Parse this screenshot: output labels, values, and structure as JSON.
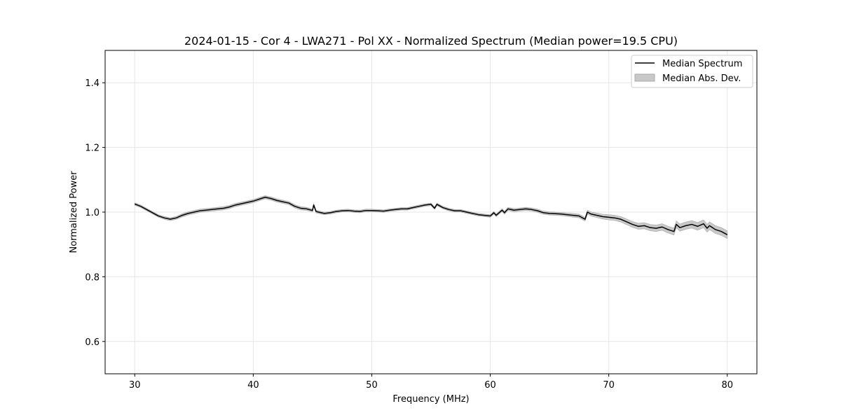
{
  "chart_data": {
    "type": "line",
    "title": "2024-01-15 - Cor 4 - LWA271 - Pol XX - Normalized Spectrum (Median power=19.5 CPU)",
    "xlabel": "Frequency (MHz)",
    "ylabel": "Normalized Power",
    "xlim": [
      27.5,
      82.5
    ],
    "ylim": [
      0.5,
      1.5
    ],
    "xticks": [
      30,
      40,
      50,
      60,
      70,
      80
    ],
    "yticks": [
      0.6,
      0.8,
      1.0,
      1.2,
      1.4
    ],
    "xtick_labels": [
      "30",
      "40",
      "50",
      "60",
      "70",
      "80"
    ],
    "ytick_labels": [
      "0.6",
      "0.8",
      "1.0",
      "1.2",
      "1.4"
    ],
    "grid": true,
    "legend": {
      "placement": "top-right",
      "entries": [
        "Median Spectrum",
        "Median Abs. Dev."
      ]
    },
    "series": [
      {
        "name": "Median Spectrum",
        "color": "#000000",
        "x": [
          30.0,
          30.5,
          31.0,
          31.5,
          32.0,
          32.5,
          33.0,
          33.5,
          34.0,
          34.5,
          35.0,
          35.5,
          36.0,
          36.5,
          37.0,
          37.5,
          38.0,
          38.5,
          39.0,
          39.5,
          40.0,
          40.5,
          41.0,
          41.5,
          42.0,
          42.5,
          43.0,
          43.5,
          44.0,
          44.5,
          45.0,
          45.1,
          45.3,
          45.5,
          46.0,
          46.5,
          47.0,
          47.5,
          48.0,
          48.5,
          49.0,
          49.5,
          50.0,
          50.5,
          51.0,
          51.5,
          52.0,
          52.5,
          53.0,
          53.5,
          54.0,
          54.5,
          55.0,
          55.3,
          55.5,
          56.0,
          56.5,
          57.0,
          57.5,
          58.0,
          58.5,
          59.0,
          59.5,
          60.0,
          60.3,
          60.5,
          61.0,
          61.2,
          61.5,
          62.0,
          62.5,
          63.0,
          63.5,
          64.0,
          64.5,
          65.0,
          65.5,
          66.0,
          66.5,
          67.0,
          67.5,
          68.0,
          68.2,
          68.5,
          69.0,
          69.5,
          70.0,
          70.5,
          71.0,
          71.5,
          72.0,
          72.5,
          73.0,
          73.5,
          74.0,
          74.5,
          75.0,
          75.5,
          75.7,
          76.0,
          76.5,
          77.0,
          77.5,
          78.0,
          78.3,
          78.5,
          79.0,
          79.5,
          80.0
        ],
        "values": [
          1.025,
          1.018,
          1.008,
          0.998,
          0.988,
          0.982,
          0.978,
          0.982,
          0.99,
          0.996,
          1.0,
          1.004,
          1.006,
          1.008,
          1.01,
          1.012,
          1.016,
          1.022,
          1.026,
          1.03,
          1.034,
          1.04,
          1.046,
          1.042,
          1.036,
          1.032,
          1.028,
          1.018,
          1.012,
          1.01,
          1.005,
          1.022,
          1.002,
          1.0,
          0.996,
          0.998,
          1.002,
          1.004,
          1.005,
          1.003,
          1.002,
          1.005,
          1.005,
          1.004,
          1.003,
          1.006,
          1.008,
          1.01,
          1.01,
          1.014,
          1.018,
          1.022,
          1.024,
          1.012,
          1.024,
          1.014,
          1.008,
          1.004,
          1.004,
          1.0,
          0.996,
          0.992,
          0.99,
          0.988,
          0.998,
          0.99,
          1.006,
          0.998,
          1.01,
          1.006,
          1.008,
          1.01,
          1.008,
          1.004,
          0.998,
          0.996,
          0.995,
          0.994,
          0.992,
          0.99,
          0.988,
          0.978,
          1.0,
          0.994,
          0.99,
          0.986,
          0.984,
          0.982,
          0.978,
          0.97,
          0.962,
          0.956,
          0.958,
          0.952,
          0.95,
          0.954,
          0.946,
          0.94,
          0.962,
          0.952,
          0.958,
          0.962,
          0.956,
          0.964,
          0.95,
          0.958,
          0.946,
          0.94,
          0.93
        ]
      },
      {
        "name": "Median Abs. Dev.",
        "color": "#c8c8c8",
        "x": [
          30.0,
          32.0,
          34.0,
          36.0,
          38.0,
          40.0,
          42.0,
          44.0,
          46.0,
          48.0,
          50.0,
          52.0,
          54.0,
          56.0,
          58.0,
          60.0,
          62.0,
          64.0,
          66.0,
          68.0,
          70.0,
          72.0,
          74.0,
          76.0,
          78.0,
          80.0
        ],
        "values": [
          0.004,
          0.004,
          0.005,
          0.005,
          0.005,
          0.005,
          0.005,
          0.005,
          0.004,
          0.004,
          0.004,
          0.004,
          0.004,
          0.004,
          0.004,
          0.004,
          0.005,
          0.005,
          0.005,
          0.006,
          0.008,
          0.009,
          0.01,
          0.011,
          0.012,
          0.012
        ]
      }
    ]
  }
}
